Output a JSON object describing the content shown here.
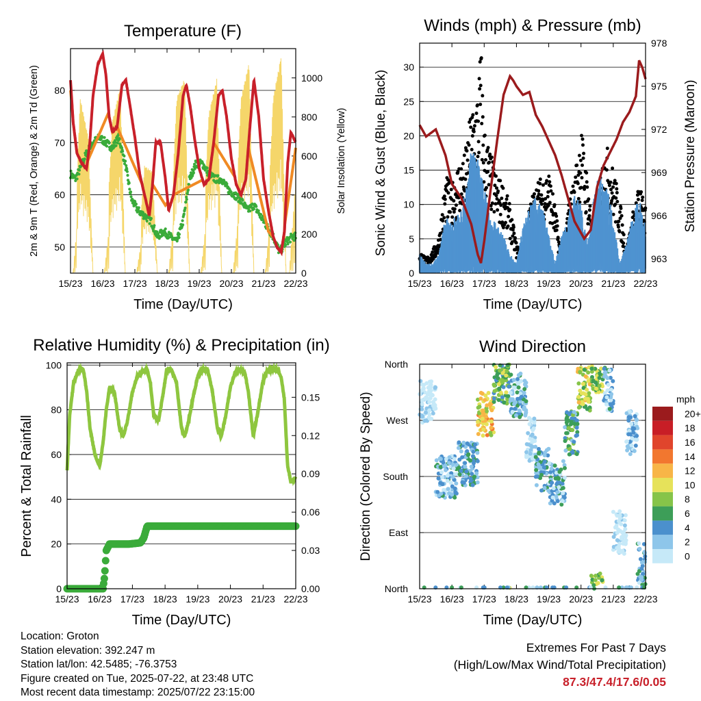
{
  "x_ticks": [
    "15/23",
    "16/23",
    "17/23",
    "18/23",
    "19/23",
    "20/23",
    "21/23",
    "22/23"
  ],
  "panels": {
    "temperature": {
      "title": "Temperature (F)",
      "xlabel": "Time (Day/UTC)",
      "ylabel_left": "2m & 9m T (Red, Orange) & 2m Td (Green)",
      "ylabel_right": "Solar Insolation (Yellow)",
      "left_ticks": [
        "50",
        "60",
        "70",
        "80"
      ],
      "right_ticks": [
        "0",
        "200",
        "400",
        "600",
        "800",
        "1000"
      ]
    },
    "wind": {
      "title": "Winds (mph) & Pressure (mb)",
      "xlabel": "Time (Day/UTC)",
      "ylabel_left": "Sonic Wind & Gust (Blue, Black)",
      "ylabel_right": "Station Pressure (Maroon)",
      "left_ticks": [
        "0",
        "5",
        "10",
        "15",
        "20",
        "25",
        "30"
      ],
      "right_ticks": [
        "963",
        "966",
        "969",
        "972",
        "975",
        "978"
      ]
    },
    "humidity": {
      "title": "Relative Humidity (%) & Precipitation (in)",
      "xlabel": "Time (Day/UTC)",
      "ylabel_left": "Percent & Total Rainfall",
      "left_ticks": [
        "0",
        "20",
        "40",
        "60",
        "80",
        "100"
      ],
      "right_ticks": [
        "0.00",
        "0.03",
        "0.06",
        "0.09",
        "0.12",
        "0.15"
      ]
    },
    "direction": {
      "title": "Wind Direction",
      "xlabel": "Time (Day/UTC)",
      "ylabel_left": "Direction (Colored By Speed)",
      "left_ticks": [
        "North",
        "East",
        "South",
        "West",
        "North"
      ],
      "legend_title": "mph",
      "legend_labels": [
        "0",
        "2",
        "4",
        "6",
        "8",
        "10",
        "12",
        "14",
        "16",
        "18",
        "20+"
      ],
      "legend_colors": [
        "#c6e9f8",
        "#8ec6ea",
        "#4b90cd",
        "#3d9e58",
        "#86c449",
        "#e6e25a",
        "#f8b547",
        "#f2772f",
        "#e0452c",
        "#c81e26",
        "#9b1b1d"
      ]
    }
  },
  "colors": {
    "temp_2m": "#c8202a",
    "temp_9m": "#f08a24",
    "dewpoint": "#3aab3a",
    "solar": "#f5d66a",
    "wind": "#4f93d0",
    "gust": "#000000",
    "pressure": "#9b1b1d",
    "humidity": "#8ec63f",
    "rain": "#3aab3a"
  },
  "chart_data": [
    {
      "type": "line",
      "title": "Temperature (F)",
      "xlabel": "Time (Day/UTC)",
      "ylabel": "2m & 9m T (Red, Orange) & 2m Td (Green)",
      "y2label": "Solar Insolation (Yellow)",
      "ylim": [
        45,
        88
      ],
      "y2lim": [
        0,
        1150
      ],
      "xlim": [
        0,
        7
      ],
      "x_ticks": [
        "15/23",
        "16/23",
        "17/23",
        "18/23",
        "19/23",
        "20/23",
        "21/23",
        "22/23"
      ],
      "series": [
        {
          "name": "2m T",
          "axis": "left",
          "x": [
            0,
            0.08,
            0.2,
            0.35,
            0.5,
            0.6,
            0.7,
            0.85,
            1.0,
            1.1,
            1.2,
            1.3,
            1.45,
            1.6,
            1.72,
            1.85,
            2.0,
            2.15,
            2.3,
            2.45,
            2.55,
            2.65,
            2.8,
            2.95,
            3.05,
            3.2,
            3.35,
            3.5,
            3.6,
            3.72,
            3.85,
            4.0,
            4.15,
            4.3,
            4.45,
            4.6,
            4.72,
            4.85,
            5.0,
            5.15,
            5.3,
            5.45,
            5.55,
            5.7,
            5.85,
            6.0,
            6.15,
            6.3,
            6.42,
            6.55,
            6.65,
            6.75,
            6.85,
            7.0
          ],
          "y": [
            82,
            74,
            68,
            66,
            65,
            70,
            79,
            85,
            87,
            83,
            75,
            72,
            73,
            81,
            82,
            77,
            71,
            64,
            60,
            56,
            62,
            70,
            70,
            63,
            57,
            60,
            68,
            79,
            81,
            77,
            71,
            65,
            62,
            63,
            70,
            79,
            80,
            75,
            67,
            62,
            60,
            63,
            71,
            82,
            75,
            63,
            57,
            52,
            50,
            49,
            53,
            66,
            72,
            70
          ]
        },
        {
          "name": "9m T",
          "axis": "left",
          "x": [
            0,
            0.2,
            0.35,
            0.5,
            1.2,
            1.45,
            2.3,
            2.55,
            2.95,
            3.2,
            4.15,
            4.45,
            5.15,
            5.45,
            6.15,
            6.42,
            6.65,
            7.0
          ],
          "y": [
            80,
            68,
            67,
            66,
            76,
            73,
            61,
            62,
            58,
            60,
            63,
            70,
            63,
            71,
            53,
            51,
            54,
            69
          ]
        },
        {
          "name": "2m Td",
          "axis": "left",
          "x": [
            0,
            0.15,
            0.3,
            0.5,
            0.7,
            0.9,
            1.1,
            1.3,
            1.5,
            1.7,
            1.9,
            2.1,
            2.3,
            2.5,
            2.7,
            2.9,
            3.1,
            3.3,
            3.5,
            3.7,
            3.9,
            4.1,
            4.3,
            4.5,
            4.7,
            4.9,
            5.1,
            5.3,
            5.5,
            5.7,
            5.9,
            6.1,
            6.3,
            6.5,
            6.7,
            6.9,
            7.0
          ],
          "y": [
            64,
            63,
            65,
            68,
            70,
            71,
            70,
            69,
            71,
            66,
            59,
            57,
            56,
            55,
            52,
            53,
            52,
            51,
            55,
            63,
            66,
            66,
            64,
            63,
            63,
            61,
            60,
            59,
            57,
            58,
            56,
            54,
            52,
            49,
            51,
            52,
            52
          ]
        },
        {
          "name": "Solar Insolation",
          "axis": "right",
          "x": [
            0.0,
            0.08,
            0.3,
            0.55,
            0.7,
            0.8,
            1.05,
            1.3,
            1.55,
            1.7,
            1.8,
            2.05,
            2.3,
            2.55,
            2.7,
            2.8,
            3.05,
            3.3,
            3.55,
            3.7,
            3.8,
            4.05,
            4.3,
            4.55,
            4.7,
            4.8,
            5.05,
            5.3,
            5.55,
            5.7,
            5.8,
            6.05,
            6.3,
            6.55,
            6.7,
            6.8,
            7.0
          ],
          "y": [
            0,
            0,
            900,
            700,
            0,
            0,
            0,
            780,
            960,
            0,
            0,
            0,
            550,
            520,
            0,
            0,
            0,
            900,
            1000,
            0,
            0,
            0,
            820,
            1000,
            0,
            0,
            0,
            900,
            1080,
            0,
            0,
            0,
            900,
            1120,
            0,
            0,
            980
          ]
        }
      ]
    },
    {
      "type": "line",
      "title": "Winds (mph) & Pressure (mb)",
      "xlabel": "Time (Day/UTC)",
      "ylabel": "Sonic Wind & Gust (Blue, Black)",
      "y2label": "Station Pressure (Maroon)",
      "ylim": [
        0,
        33.5
      ],
      "y2lim": [
        962.0,
        978.0
      ],
      "xlim": [
        0,
        7
      ],
      "x_ticks": [
        "15/23",
        "16/23",
        "17/23",
        "18/23",
        "19/23",
        "20/23",
        "21/23",
        "22/23"
      ],
      "series": [
        {
          "name": "Sonic Wind",
          "axis": "left",
          "x": [
            0,
            0.2,
            0.4,
            0.6,
            0.8,
            1.0,
            1.2,
            1.4,
            1.6,
            1.8,
            2.0,
            2.2,
            2.4,
            2.6,
            2.8,
            3.0,
            3.2,
            3.4,
            3.6,
            3.8,
            4.0,
            4.2,
            4.4,
            4.6,
            4.8,
            5.0,
            5.2,
            5.4,
            5.6,
            5.8,
            6.0,
            6.2,
            6.4,
            6.6,
            6.8,
            7.0
          ],
          "y": [
            2,
            1,
            1,
            2,
            6,
            5,
            7,
            8,
            13,
            12,
            9,
            6,
            5,
            4,
            2,
            1,
            5,
            7,
            8,
            7,
            4,
            1,
            4,
            6,
            9,
            7,
            3,
            8,
            11,
            9,
            6,
            1,
            3,
            6,
            8,
            5
          ]
        },
        {
          "name": "Gust",
          "axis": "left",
          "x": [
            0,
            0.2,
            0.4,
            0.6,
            0.8,
            1.0,
            1.2,
            1.4,
            1.6,
            1.8,
            1.9,
            2.0,
            2.2,
            2.4,
            2.6,
            2.8,
            3.0,
            3.2,
            3.4,
            3.6,
            3.8,
            4.0,
            4.2,
            4.4,
            4.6,
            4.8,
            5.0,
            5.2,
            5.4,
            5.6,
            5.8,
            6.0,
            6.2,
            6.4,
            6.6,
            6.8,
            7.0
          ],
          "y": [
            3,
            2,
            3,
            5,
            13,
            12,
            15,
            16,
            22,
            25,
            31,
            20,
            16,
            13,
            12,
            9,
            4,
            2,
            9,
            12,
            13,
            14,
            9,
            2,
            9,
            13,
            20,
            13,
            5,
            14,
            17,
            14,
            10,
            3,
            8,
            12,
            9
          ]
        },
        {
          "name": "Station Pressure",
          "axis": "right",
          "x": [
            0,
            0.2,
            0.5,
            0.8,
            1.0,
            1.3,
            1.6,
            1.8,
            1.9,
            2.0,
            2.2,
            2.4,
            2.6,
            2.8,
            2.9,
            3.0,
            3.2,
            3.4,
            3.6,
            3.8,
            4.0,
            4.2,
            4.4,
            4.6,
            4.8,
            5.0,
            5.1,
            5.3,
            5.5,
            5.7,
            5.9,
            6.1,
            6.3,
            6.5,
            6.7,
            6.8,
            6.9,
            7.0
          ],
          "y": [
            972.3,
            971.5,
            972.0,
            970.2,
            968.2,
            967.2,
            965.4,
            963.3,
            962.7,
            964.2,
            967.8,
            971.2,
            974.4,
            975.7,
            975.4,
            975.0,
            974.4,
            974.6,
            973.0,
            972.2,
            971.2,
            970.2,
            968.8,
            967.2,
            965.6,
            964.8,
            964.4,
            965.0,
            968.0,
            969.5,
            970.4,
            971.3,
            972.5,
            973.2,
            974.3,
            976.8,
            976.3,
            975.5
          ]
        }
      ]
    },
    {
      "type": "line",
      "title": "Relative Humidity (%) & Precipitation (in)",
      "xlabel": "Time (Day/UTC)",
      "ylabel": "Percent & Total Rainfall",
      "ylim": [
        0,
        101
      ],
      "y2lim": [
        0,
        0.177
      ],
      "xlim": [
        0,
        7
      ],
      "x_ticks": [
        "15/23",
        "16/23",
        "17/23",
        "18/23",
        "19/23",
        "20/23",
        "21/23",
        "22/23"
      ],
      "series": [
        {
          "name": "Relative Humidity",
          "axis": "left",
          "x": [
            0,
            0.08,
            0.2,
            0.35,
            0.5,
            0.6,
            0.7,
            0.85,
            1.0,
            1.1,
            1.2,
            1.3,
            1.45,
            1.6,
            1.72,
            1.85,
            2.0,
            2.15,
            2.3,
            2.45,
            2.55,
            2.65,
            2.8,
            2.95,
            3.05,
            3.2,
            3.35,
            3.5,
            3.6,
            3.72,
            3.85,
            4.0,
            4.15,
            4.3,
            4.45,
            4.6,
            4.72,
            4.85,
            5.0,
            5.15,
            5.3,
            5.45,
            5.55,
            5.7,
            5.85,
            6.0,
            6.15,
            6.3,
            6.42,
            6.55,
            6.65,
            6.75,
            6.85,
            7.0
          ],
          "y": [
            53,
            78,
            92,
            98,
            98,
            88,
            72,
            60,
            55,
            65,
            80,
            90,
            88,
            72,
            68,
            75,
            88,
            95,
            97,
            98,
            92,
            78,
            75,
            88,
            98,
            98,
            92,
            72,
            68,
            75,
            85,
            95,
            98,
            98,
            88,
            72,
            68,
            77,
            90,
            97,
            98,
            96,
            88,
            68,
            80,
            93,
            98,
            98,
            98,
            95,
            85,
            55,
            48,
            50
          ]
        },
        {
          "name": "Total Rainfall",
          "axis": "right",
          "x": [
            0,
            1.1,
            1.15,
            1.2,
            1.3,
            1.5,
            1.7,
            1.9,
            2.25,
            2.35,
            2.45,
            3.0,
            4.0,
            5.0,
            6.0,
            7.0
          ],
          "y": [
            0,
            0,
            0.01,
            0.03,
            0.035,
            0.035,
            0.035,
            0.035,
            0.036,
            0.04,
            0.049,
            0.049,
            0.049,
            0.049,
            0.049,
            0.049
          ]
        }
      ]
    },
    {
      "type": "scatter",
      "title": "Wind Direction",
      "xlabel": "Time (Day/UTC)",
      "ylabel": "Direction (Colored By Speed)",
      "ylim": [
        0,
        360
      ],
      "xlim": [
        0,
        7
      ],
      "y_ticks": [
        "North",
        "East",
        "South",
        "West",
        "North"
      ],
      "x_ticks": [
        "15/23",
        "16/23",
        "17/23",
        "18/23",
        "19/23",
        "20/23",
        "21/23",
        "22/23"
      ],
      "legend_title": "mph",
      "series": [
        {
          "name": "Direction",
          "x_ranges": [
            [
              0,
              0.5
            ],
            [
              0.5,
              1.2
            ],
            [
              1.2,
              1.8
            ],
            [
              1.8,
              2.3
            ],
            [
              2.3,
              2.8
            ],
            [
              2.8,
              3.3
            ],
            [
              3.3,
              3.6
            ],
            [
              3.6,
              4.0
            ],
            [
              4.0,
              4.5
            ],
            [
              4.5,
              4.9
            ],
            [
              4.9,
              5.3
            ],
            [
              5.3,
              5.7
            ],
            [
              5.7,
              6.0
            ],
            [
              6.0,
              6.4
            ],
            [
              6.4,
              6.75
            ],
            [
              6.75,
              7.0
            ]
          ],
          "y_centers": [
            300,
            180,
            200,
            280,
            330,
            310,
            240,
            190,
            170,
            250,
            320,
            350,
            320,
            90,
            250,
            40
          ],
          "speeds": [
            1,
            4,
            5,
            12,
            8,
            4,
            1,
            5,
            4,
            6,
            10,
            9,
            4,
            1,
            3,
            4
          ]
        }
      ]
    }
  ],
  "info": {
    "location": "Location: Groton",
    "elevation": "Station elevation: 392.247 m",
    "latlon": "Station lat/lon: 42.5485; -76.3753",
    "created": "Figure created on Tue, 2025-07-22, at 23:48 UTC",
    "recent": "Most recent data timestamp: 2025/07/22 23:15:00"
  },
  "extremes": {
    "line1": "Extremes For Past 7 Days",
    "line2": "(High/Low/Max Wind/Total Precipitation)",
    "values": "87.3/47.4/17.6/0.05"
  }
}
